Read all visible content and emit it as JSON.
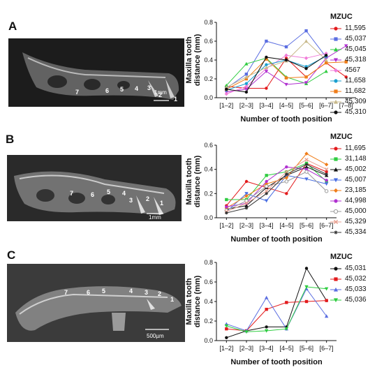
{
  "panels": [
    {
      "letter": "A",
      "sem_numbers": [
        "7",
        "6",
        "5",
        "4",
        "3",
        "2",
        "1"
      ],
      "sem_scale": "1mm"
    },
    {
      "letter": "B",
      "sem_numbers": [
        "7",
        "6",
        "5",
        "4",
        "3",
        "2",
        "1"
      ],
      "sem_scale": "1mm"
    },
    {
      "letter": "C",
      "sem_numbers": [
        "7",
        "6",
        "5",
        "4",
        "3",
        "2",
        "1"
      ],
      "sem_scale": "500µm"
    }
  ],
  "legend_title": "MZUC",
  "chart_data": [
    {
      "type": "line",
      "xlabel": "Number of tooth position",
      "ylabel": "Maxilla tooth distance (mm)",
      "ylim": [
        0,
        0.8
      ],
      "yticks": [
        "0.0",
        "0.2",
        "0.4",
        "0.6",
        "0.8"
      ],
      "categories": [
        "[1–2]",
        "[2–3]",
        "[3–4]",
        "[4–5]",
        "[5–6]",
        "[6–7]",
        "[7–8]"
      ],
      "series": [
        {
          "name": "11,595",
          "color": "#e31a1c",
          "marker": "circle",
          "values": [
            0.12,
            0.1,
            0.1,
            0.42,
            0.22,
            0.37,
            0.22
          ]
        },
        {
          "name": "45,037",
          "color": "#5b6ee1",
          "marker": "square",
          "values": [
            0.1,
            0.25,
            0.6,
            0.54,
            0.71,
            0.43,
            null
          ]
        },
        {
          "name": "45,045",
          "color": "#2ecc40",
          "marker": "triangle",
          "values": [
            0.13,
            0.36,
            0.42,
            0.22,
            0.15,
            0.28,
            null
          ]
        },
        {
          "name": "45,318",
          "color": "#b030d0",
          "marker": "triangle-down",
          "values": [
            0.06,
            0.09,
            0.28,
            0.14,
            0.16,
            0.42,
            0.55
          ]
        },
        {
          "name": "4567",
          "color": "#f07ad8",
          "marker": "diamond",
          "values": [
            0.04,
            0.12,
            0.31,
            0.45,
            0.42,
            0.47,
            null
          ]
        },
        {
          "name": "11,658",
          "color": "#1a9fcf",
          "marker": "circle",
          "values": [
            0.08,
            0.15,
            0.35,
            0.4,
            0.33,
            0.44,
            null
          ]
        },
        {
          "name": "11,682",
          "color": "#ef7d1a",
          "marker": "square",
          "values": [
            0.09,
            0.2,
            0.41,
            0.21,
            0.22,
            0.37,
            0.38
          ]
        },
        {
          "name": "45,309",
          "color": "#c8b98a",
          "marker": "triangle",
          "values": [
            0.11,
            0.22,
            0.32,
            0.39,
            0.6,
            0.4,
            null
          ]
        },
        {
          "name": "45,310",
          "color": "#111111",
          "marker": "circle",
          "values": [
            0.09,
            0.06,
            0.43,
            0.4,
            0.31,
            0.45,
            null
          ]
        }
      ]
    },
    {
      "type": "line",
      "xlabel": "Number of tooth position",
      "ylabel": "Maxilla tooth distance (mm)",
      "ylim": [
        0,
        0.6
      ],
      "yticks": [
        "0.0",
        "0.2",
        "0.4",
        "0.6"
      ],
      "categories": [
        "[1–2]",
        "[2–3]",
        "[3–4]",
        "[4–5]",
        "[5–6]",
        "[6–7]"
      ],
      "series": [
        {
          "name": "11,695",
          "color": "#e31a1c",
          "marker": "circle",
          "values": [
            0.1,
            0.3,
            0.25,
            0.2,
            0.45,
            0.38
          ]
        },
        {
          "name": "31,148",
          "color": "#2ecc40",
          "marker": "square",
          "values": [
            0.15,
            0.15,
            0.35,
            0.38,
            0.45,
            0.3
          ]
        },
        {
          "name": "45,002",
          "color": "#111111",
          "marker": "triangle",
          "values": [
            0.07,
            0.1,
            0.25,
            0.35,
            0.42,
            0.35
          ]
        },
        {
          "name": "45,007",
          "color": "#4a6fe3",
          "marker": "triangle-down",
          "values": [
            0.05,
            0.2,
            0.14,
            0.35,
            0.32,
            0.28
          ]
        },
        {
          "name": "23,185",
          "color": "#ef7d1a",
          "marker": "diamond",
          "values": [
            0.08,
            0.18,
            0.28,
            0.33,
            0.53,
            0.44
          ]
        },
        {
          "name": "44,998",
          "color": "#b030d0",
          "marker": "circle",
          "values": [
            0.09,
            0.12,
            0.3,
            0.42,
            0.4,
            0.31
          ]
        },
        {
          "name": "45,000",
          "color": "#999999",
          "marker": "circle-open",
          "values": [
            0.06,
            0.14,
            0.26,
            0.3,
            0.38,
            0.22
          ]
        },
        {
          "name": "45,329",
          "color": "#e8a090",
          "marker": "x",
          "values": [
            0.05,
            0.12,
            0.22,
            0.38,
            0.48,
            0.4
          ]
        },
        {
          "name": "45,334",
          "color": "#333333",
          "marker": "star",
          "values": [
            0.04,
            0.08,
            0.2,
            0.36,
            0.44,
            0.36
          ]
        }
      ]
    },
    {
      "type": "line",
      "xlabel": "Number of tooth position",
      "ylabel": "Maxilla tooth distance (mm)",
      "ylim": [
        0,
        0.8
      ],
      "yticks": [
        "0.0",
        "0.2",
        "0.4",
        "0.6",
        "0.8"
      ],
      "categories": [
        "[1–2]",
        "[2–3]",
        "[3–4]",
        "[4–5]",
        "[5–6]",
        "[6–7]"
      ],
      "series": [
        {
          "name": "45,031",
          "color": "#111111",
          "marker": "circle",
          "values": [
            0.03,
            0.1,
            0.14,
            0.14,
            0.74,
            0.41
          ]
        },
        {
          "name": "45,032",
          "color": "#e31a1c",
          "marker": "square",
          "values": [
            0.12,
            0.1,
            0.32,
            0.39,
            0.4,
            0.41
          ]
        },
        {
          "name": "45,033",
          "color": "#5b6ee1",
          "marker": "triangle",
          "values": [
            0.17,
            0.1,
            0.44,
            0.12,
            0.53,
            0.25
          ]
        },
        {
          "name": "45,036",
          "color": "#2ecc40",
          "marker": "triangle-down",
          "values": [
            0.15,
            0.09,
            0.1,
            0.12,
            0.55,
            0.53
          ]
        }
      ]
    }
  ]
}
